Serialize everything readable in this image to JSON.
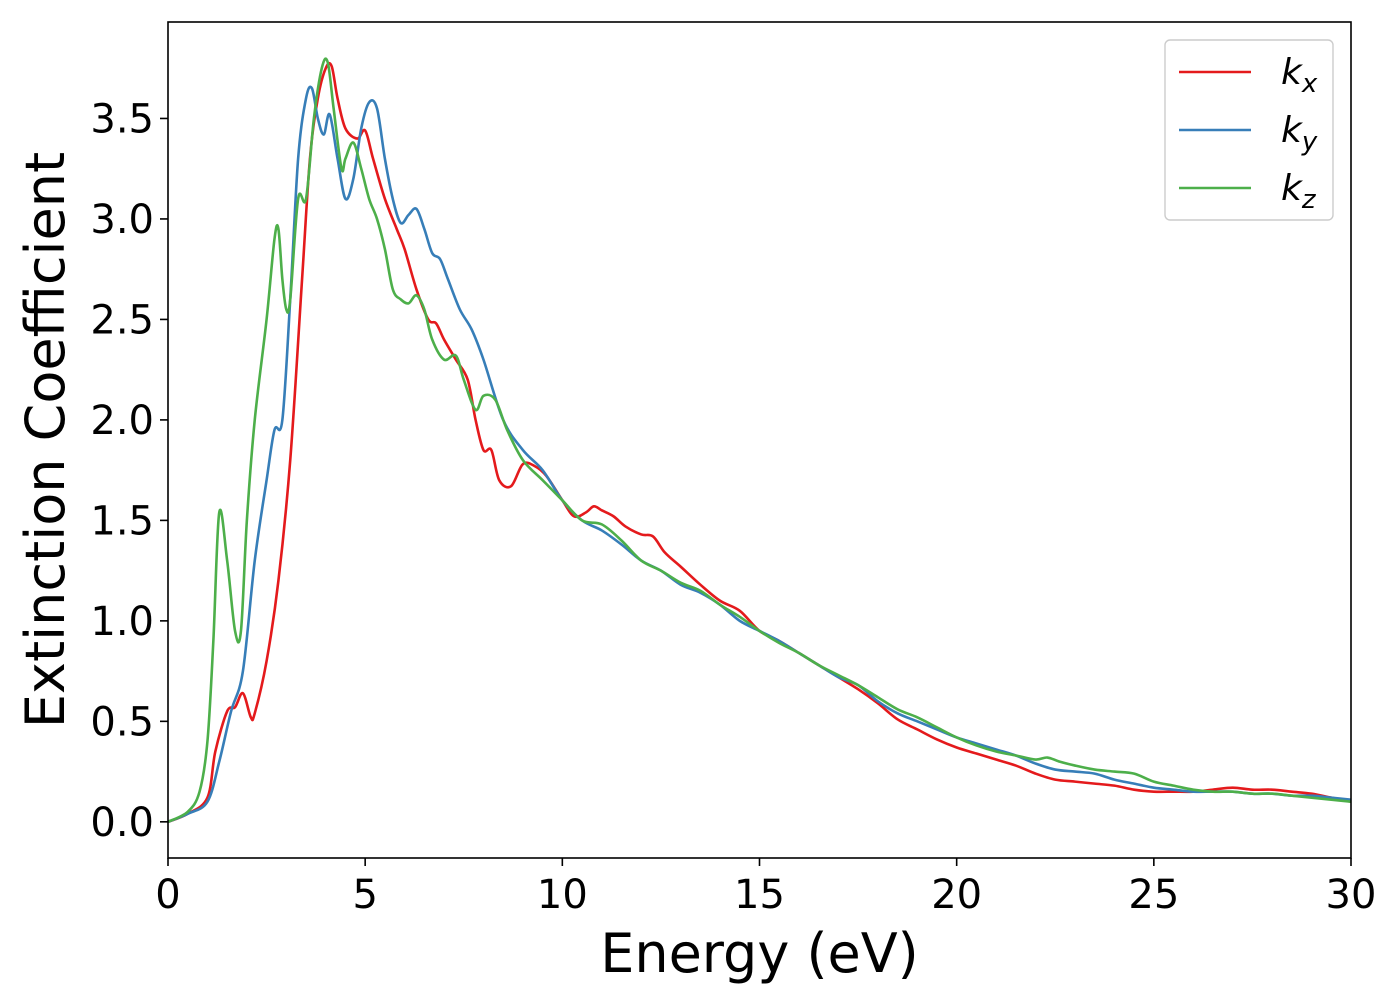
{
  "chart_data": {
    "type": "line",
    "xlabel": "Energy (eV)",
    "ylabel": "Extinction Coefficient",
    "xlim": [
      0,
      30
    ],
    "ylim": [
      -0.18,
      3.98
    ],
    "xticks": [
      0,
      5,
      10,
      15,
      20,
      25,
      30
    ],
    "yticks": [
      0.0,
      0.5,
      1.0,
      1.5,
      2.0,
      2.5,
      3.0,
      3.5
    ],
    "xtick_labels": [
      "0",
      "5",
      "10",
      "15",
      "20",
      "25",
      "30"
    ],
    "ytick_labels": [
      "0.0",
      "0.5",
      "1.0",
      "1.5",
      "2.0",
      "2.5",
      "3.0",
      "3.5"
    ],
    "grid": false,
    "legend_position": "top-right",
    "series": [
      {
        "name": "k",
        "subscript": "x",
        "color": "#e41a1c",
        "x": [
          0,
          0.5,
          1.0,
          1.2,
          1.5,
          1.7,
          1.9,
          2.1,
          2.2,
          2.5,
          2.8,
          3.1,
          3.4,
          3.6,
          3.8,
          4.0,
          4.15,
          4.3,
          4.5,
          4.8,
          5.0,
          5.2,
          5.5,
          5.8,
          6.0,
          6.3,
          6.6,
          6.8,
          7.0,
          7.3,
          7.6,
          7.8,
          8.0,
          8.2,
          8.4,
          8.7,
          9.0,
          9.3,
          9.6,
          10.0,
          10.3,
          10.6,
          10.8,
          11.0,
          11.3,
          11.6,
          12.0,
          12.3,
          12.6,
          13.0,
          13.5,
          14.0,
          14.5,
          15.0,
          15.5,
          16.0,
          16.5,
          17.0,
          17.5,
          18.0,
          18.5,
          19.0,
          19.5,
          20.0,
          20.5,
          21.0,
          21.5,
          22.0,
          22.5,
          23.0,
          23.5,
          24.0,
          24.5,
          25.0,
          25.5,
          26.0,
          26.5,
          27.0,
          27.5,
          28.0,
          28.5,
          29.0,
          29.5,
          30.0
        ],
        "y": [
          0.0,
          0.04,
          0.12,
          0.35,
          0.55,
          0.57,
          0.64,
          0.52,
          0.54,
          0.8,
          1.2,
          1.8,
          2.7,
          3.3,
          3.6,
          3.75,
          3.76,
          3.6,
          3.45,
          3.4,
          3.44,
          3.3,
          3.1,
          2.95,
          2.85,
          2.65,
          2.5,
          2.48,
          2.4,
          2.3,
          2.2,
          2.0,
          1.85,
          1.85,
          1.7,
          1.67,
          1.78,
          1.77,
          1.72,
          1.6,
          1.52,
          1.54,
          1.57,
          1.55,
          1.52,
          1.47,
          1.43,
          1.42,
          1.34,
          1.27,
          1.18,
          1.1,
          1.05,
          0.95,
          0.9,
          0.84,
          0.78,
          0.72,
          0.66,
          0.59,
          0.51,
          0.46,
          0.41,
          0.37,
          0.34,
          0.31,
          0.28,
          0.24,
          0.21,
          0.2,
          0.19,
          0.18,
          0.16,
          0.15,
          0.15,
          0.15,
          0.16,
          0.17,
          0.16,
          0.16,
          0.15,
          0.14,
          0.12,
          0.1
        ]
      },
      {
        "name": "k",
        "subscript": "y",
        "color": "#377eb8",
        "x": [
          0,
          0.5,
          1.0,
          1.3,
          1.6,
          1.9,
          2.2,
          2.5,
          2.7,
          2.9,
          3.1,
          3.3,
          3.5,
          3.65,
          3.8,
          3.95,
          4.1,
          4.3,
          4.5,
          4.7,
          4.9,
          5.1,
          5.3,
          5.5,
          5.7,
          5.9,
          6.1,
          6.3,
          6.5,
          6.7,
          6.9,
          7.1,
          7.4,
          7.7,
          8.0,
          8.5,
          9.0,
          9.5,
          10.0,
          10.5,
          11.0,
          11.5,
          12.0,
          12.5,
          13.0,
          13.5,
          14.0,
          14.5,
          15.0,
          15.5,
          16.0,
          16.5,
          17.0,
          17.5,
          18.0,
          18.5,
          19.0,
          19.5,
          20.0,
          20.5,
          21.0,
          21.5,
          22.0,
          22.5,
          23.0,
          23.5,
          24.0,
          24.5,
          25.0,
          25.5,
          26.0,
          26.5,
          27.0,
          27.5,
          28.0,
          28.5,
          29.0,
          29.5,
          30.0
        ],
        "y": [
          0.0,
          0.04,
          0.1,
          0.3,
          0.55,
          0.75,
          1.3,
          1.7,
          1.95,
          2.0,
          2.6,
          3.3,
          3.6,
          3.65,
          3.5,
          3.42,
          3.52,
          3.3,
          3.1,
          3.2,
          3.45,
          3.58,
          3.55,
          3.3,
          3.1,
          2.98,
          3.02,
          3.05,
          2.95,
          2.83,
          2.8,
          2.7,
          2.55,
          2.45,
          2.3,
          2.0,
          1.85,
          1.75,
          1.6,
          1.5,
          1.45,
          1.38,
          1.3,
          1.25,
          1.18,
          1.14,
          1.08,
          1.0,
          0.95,
          0.9,
          0.84,
          0.78,
          0.72,
          0.68,
          0.6,
          0.54,
          0.5,
          0.46,
          0.42,
          0.39,
          0.36,
          0.33,
          0.29,
          0.26,
          0.25,
          0.24,
          0.21,
          0.19,
          0.17,
          0.16,
          0.15,
          0.15,
          0.15,
          0.14,
          0.14,
          0.13,
          0.13,
          0.12,
          0.11
        ]
      },
      {
        "name": "k",
        "subscript": "z",
        "color": "#4daf4a",
        "x": [
          0,
          0.5,
          0.8,
          1.0,
          1.15,
          1.3,
          1.5,
          1.7,
          1.85,
          2.0,
          2.2,
          2.5,
          2.7,
          2.8,
          2.9,
          3.0,
          3.1,
          3.3,
          3.5,
          3.7,
          3.9,
          4.05,
          4.2,
          4.4,
          4.5,
          4.7,
          4.9,
          5.1,
          5.3,
          5.5,
          5.7,
          5.9,
          6.1,
          6.3,
          6.5,
          6.7,
          7.0,
          7.3,
          7.5,
          7.8,
          8.0,
          8.3,
          8.6,
          9.0,
          9.5,
          10.0,
          10.5,
          11.0,
          11.5,
          12.0,
          12.5,
          13.0,
          13.5,
          14.0,
          14.5,
          15.0,
          15.5,
          16.0,
          16.5,
          17.0,
          17.5,
          18.0,
          18.5,
          19.0,
          19.5,
          20.0,
          20.5,
          21.0,
          21.5,
          22.0,
          22.3,
          22.6,
          23.0,
          23.5,
          24.0,
          24.5,
          25.0,
          25.5,
          26.0,
          26.5,
          27.0,
          27.5,
          28.0,
          28.5,
          29.0,
          29.5,
          30.0
        ],
        "y": [
          0.0,
          0.05,
          0.15,
          0.4,
          0.9,
          1.54,
          1.3,
          0.95,
          0.95,
          1.5,
          2.0,
          2.5,
          2.9,
          2.95,
          2.7,
          2.55,
          2.6,
          3.1,
          3.1,
          3.5,
          3.75,
          3.78,
          3.55,
          3.25,
          3.3,
          3.38,
          3.25,
          3.1,
          3.0,
          2.85,
          2.65,
          2.6,
          2.58,
          2.62,
          2.55,
          2.4,
          2.3,
          2.32,
          2.2,
          2.05,
          2.12,
          2.1,
          1.95,
          1.8,
          1.7,
          1.6,
          1.5,
          1.48,
          1.4,
          1.3,
          1.25,
          1.19,
          1.15,
          1.08,
          1.02,
          0.95,
          0.89,
          0.84,
          0.78,
          0.73,
          0.68,
          0.62,
          0.56,
          0.52,
          0.47,
          0.42,
          0.38,
          0.35,
          0.33,
          0.31,
          0.32,
          0.3,
          0.28,
          0.26,
          0.25,
          0.24,
          0.2,
          0.18,
          0.16,
          0.15,
          0.15,
          0.14,
          0.14,
          0.13,
          0.12,
          0.11,
          0.1
        ]
      }
    ]
  }
}
